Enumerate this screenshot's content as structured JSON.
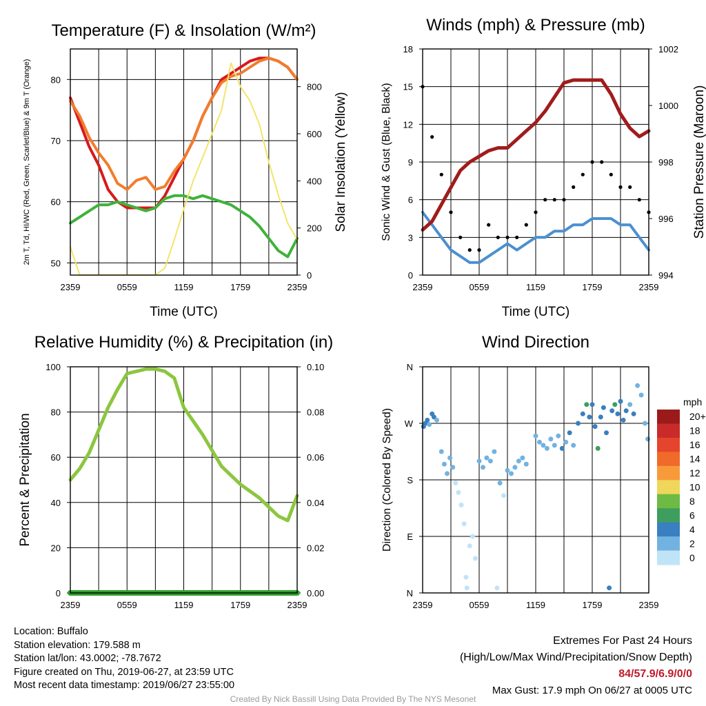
{
  "chart_data": [
    {
      "type": "line",
      "title": "Temperature (F) & Insolation (W/m²)",
      "xlabel": "Time (UTC)",
      "ylabel_left": "2m T, Td, HI/WC (Red, Green, Scarlet/Blue) & 9m T (Orange)",
      "ylabel_right": "Solar Insolation (Yellow)",
      "x_ticks": [
        "2359",
        "0559",
        "1159",
        "1759",
        "2359"
      ],
      "ylim_left": [
        48,
        85
      ],
      "yticks_left": [
        50,
        60,
        70,
        80
      ],
      "ylim_right": [
        0,
        960
      ],
      "yticks_right": [
        0,
        200,
        400,
        600,
        800
      ],
      "x_hours": [
        0,
        1,
        2,
        3,
        4,
        5,
        6,
        7,
        8,
        9,
        10,
        11,
        12,
        13,
        14,
        15,
        16,
        17,
        18,
        19,
        20,
        21,
        22,
        23,
        24
      ],
      "series": [
        {
          "name": "2m T",
          "color": "#d7191c",
          "axis": "left",
          "values": [
            77,
            73,
            69,
            66,
            62,
            60,
            59,
            59,
            59,
            59,
            61,
            64,
            67,
            70,
            74,
            77,
            80,
            81,
            82,
            83,
            83.5,
            83.5,
            83,
            82,
            80
          ]
        },
        {
          "name": "9m T",
          "color": "#f27c2b",
          "axis": "left",
          "values": [
            76.5,
            74,
            70.5,
            68,
            66,
            63,
            62,
            63.5,
            64,
            62,
            62.5,
            65,
            67,
            70,
            74,
            77,
            79.5,
            80.5,
            81,
            82,
            83,
            83.5,
            83,
            82,
            80
          ]
        },
        {
          "name": "Td",
          "color": "#3fb23a",
          "axis": "left",
          "values": [
            56.5,
            57.5,
            58.5,
            59.5,
            59.5,
            60,
            59.5,
            59,
            58.5,
            59,
            60.5,
            61,
            61,
            60.5,
            61,
            60.5,
            60,
            59.5,
            58.5,
            57.5,
            56,
            54,
            52,
            51,
            54
          ]
        },
        {
          "name": "Solar Insolation",
          "color": "#f3e46a",
          "axis": "right",
          "values": [
            120,
            0,
            0,
            0,
            0,
            0,
            0,
            0,
            0,
            0,
            30,
            150,
            280,
            400,
            500,
            600,
            700,
            900,
            800,
            740,
            640,
            480,
            340,
            220,
            150
          ]
        }
      ]
    },
    {
      "type": "line",
      "title": "Winds (mph) & Pressure (mb)",
      "xlabel": "Time (UTC)",
      "ylabel_left": "Sonic Wind & Gust (Blue, Black)",
      "ylabel_right": "Station Pressure (Maroon)",
      "x_ticks": [
        "2359",
        "0559",
        "1159",
        "1759",
        "2359"
      ],
      "ylim_left": [
        0,
        18
      ],
      "yticks_left": [
        0,
        3,
        6,
        9,
        12,
        15,
        18
      ],
      "ylim_right": [
        994,
        1002
      ],
      "yticks_right": [
        994,
        996,
        998,
        1000,
        1002
      ],
      "x_hours": [
        0,
        1,
        2,
        3,
        4,
        5,
        6,
        7,
        8,
        9,
        10,
        11,
        12,
        13,
        14,
        15,
        16,
        17,
        18,
        19,
        20,
        21,
        22,
        23,
        24
      ],
      "series": [
        {
          "name": "Sonic Wind",
          "color": "#4a90d0",
          "axis": "left",
          "values": [
            5,
            4,
            3,
            2,
            1.5,
            1,
            1,
            1.5,
            2,
            2.5,
            2,
            2.5,
            3,
            3,
            3.5,
            3.5,
            4,
            4,
            4.5,
            4.5,
            4.5,
            4,
            4,
            3,
            2
          ]
        },
        {
          "name": "Gust",
          "color": "#000000",
          "axis": "left",
          "values": [
            15,
            11,
            8,
            5,
            3,
            2,
            2,
            4,
            3,
            3,
            3,
            4,
            5,
            6,
            6,
            6,
            7,
            8,
            9,
            9,
            8,
            7,
            7,
            6,
            5
          ]
        },
        {
          "name": "Station Pressure",
          "color": "#a01c1c",
          "axis": "right",
          "values": [
            995.6,
            995.9,
            996.5,
            997.1,
            997.7,
            998.0,
            998.2,
            998.4,
            998.5,
            998.5,
            998.8,
            999.1,
            999.4,
            999.8,
            1000.3,
            1000.8,
            1000.9,
            1000.9,
            1000.9,
            1000.9,
            1000.4,
            999.7,
            999.2,
            998.9,
            999.1
          ]
        }
      ]
    },
    {
      "type": "line",
      "title": "Relative Humidity (%) & Precipitation (in)",
      "xlabel": "",
      "ylabel_left": "Percent & Precipitation",
      "x_ticks": [
        "2359",
        "0559",
        "1159",
        "1759",
        "2359"
      ],
      "ylim_left": [
        0,
        100
      ],
      "yticks_left": [
        0,
        20,
        40,
        60,
        80,
        100
      ],
      "ylim_right": [
        0,
        0.1
      ],
      "yticks_right": [
        "0.00",
        "0.02",
        "0.04",
        "0.06",
        "0.08",
        "0.10"
      ],
      "x_hours": [
        0,
        1,
        2,
        3,
        4,
        5,
        6,
        7,
        8,
        9,
        10,
        11,
        12,
        13,
        14,
        15,
        16,
        17,
        18,
        19,
        20,
        21,
        22,
        23,
        24
      ],
      "series": [
        {
          "name": "Relative Humidity",
          "color": "#8cc63f",
          "axis": "left",
          "values": [
            50,
            55,
            62,
            72,
            82,
            90,
            97,
            98,
            99,
            99,
            98,
            95,
            82,
            76,
            70,
            63,
            56,
            52,
            48,
            45,
            42,
            38,
            34,
            32,
            43
          ]
        },
        {
          "name": "Precipitation",
          "color": "#2f9e2f",
          "axis": "right",
          "values": [
            0,
            0,
            0,
            0,
            0,
            0,
            0,
            0,
            0,
            0,
            0,
            0,
            0,
            0,
            0,
            0,
            0,
            0,
            0,
            0,
            0,
            0,
            0,
            0,
            0
          ]
        }
      ]
    },
    {
      "type": "scatter",
      "title": "Wind Direction",
      "xlabel": "",
      "ylabel_left": "Direction (Colored By Speed)",
      "x_ticks": [
        "2359",
        "0559",
        "1159",
        "1759",
        "2359"
      ],
      "y_ticks": [
        "N",
        "E",
        "S",
        "W",
        "N"
      ],
      "ylim": [
        0,
        360
      ],
      "colorbar": {
        "title": "mph",
        "labels": [
          "20+",
          "18",
          "16",
          "14",
          "12",
          "10",
          "8",
          "6",
          "4",
          "2",
          "0"
        ],
        "colors": [
          "#9b1b1b",
          "#c92a2a",
          "#e4452c",
          "#f06a2a",
          "#f79b3a",
          "#f0d65a",
          "#6dbb45",
          "#3d9e5e",
          "#3a7fbf",
          "#72b2e0",
          "#bfe4f7"
        ]
      },
      "points": [
        {
          "x": 0.1,
          "dir": 265,
          "speed": 5
        },
        {
          "x": 0.3,
          "dir": 270,
          "speed": 4
        },
        {
          "x": 0.5,
          "dir": 275,
          "speed": 5
        },
        {
          "x": 0.7,
          "dir": 268,
          "speed": 3
        },
        {
          "x": 1.0,
          "dir": 285,
          "speed": 4
        },
        {
          "x": 1.2,
          "dir": 280,
          "speed": 5
        },
        {
          "x": 1.5,
          "dir": 275,
          "speed": 3
        },
        {
          "x": 2.0,
          "dir": 225,
          "speed": 2
        },
        {
          "x": 2.3,
          "dir": 205,
          "speed": 3
        },
        {
          "x": 2.6,
          "dir": 190,
          "speed": 2
        },
        {
          "x": 2.9,
          "dir": 215,
          "speed": 2
        },
        {
          "x": 3.2,
          "dir": 200,
          "speed": 2
        },
        {
          "x": 3.5,
          "dir": 175,
          "speed": 1
        },
        {
          "x": 3.8,
          "dir": 160,
          "speed": 1
        },
        {
          "x": 4.1,
          "dir": 140,
          "speed": 1
        },
        {
          "x": 4.4,
          "dir": 110,
          "speed": 1
        },
        {
          "x": 4.6,
          "dir": 25,
          "speed": 1
        },
        {
          "x": 4.7,
          "dir": 8,
          "speed": 0
        },
        {
          "x": 5.0,
          "dir": 75,
          "speed": 1
        },
        {
          "x": 5.3,
          "dir": 90,
          "speed": 1
        },
        {
          "x": 5.6,
          "dir": 55,
          "speed": 1
        },
        {
          "x": 6.0,
          "dir": 210,
          "speed": 2
        },
        {
          "x": 6.4,
          "dir": 200,
          "speed": 3
        },
        {
          "x": 6.8,
          "dir": 215,
          "speed": 2
        },
        {
          "x": 7.2,
          "dir": 210,
          "speed": 2
        },
        {
          "x": 7.6,
          "dir": 225,
          "speed": 2
        },
        {
          "x": 7.9,
          "dir": 8,
          "speed": 0
        },
        {
          "x": 8.2,
          "dir": 175,
          "speed": 2
        },
        {
          "x": 8.6,
          "dir": 155,
          "speed": 1
        },
        {
          "x": 9.0,
          "dir": 195,
          "speed": 2
        },
        {
          "x": 9.4,
          "dir": 190,
          "speed": 2
        },
        {
          "x": 9.8,
          "dir": 200,
          "speed": 3
        },
        {
          "x": 10.2,
          "dir": 210,
          "speed": 2
        },
        {
          "x": 10.6,
          "dir": 215,
          "speed": 2
        },
        {
          "x": 11.0,
          "dir": 205,
          "speed": 3
        },
        {
          "x": 12.0,
          "dir": 250,
          "speed": 2
        },
        {
          "x": 12.4,
          "dir": 240,
          "speed": 3
        },
        {
          "x": 12.8,
          "dir": 235,
          "speed": 3
        },
        {
          "x": 13.2,
          "dir": 230,
          "speed": 3
        },
        {
          "x": 13.6,
          "dir": 245,
          "speed": 3
        },
        {
          "x": 14.0,
          "dir": 235,
          "speed": 3
        },
        {
          "x": 14.4,
          "dir": 250,
          "speed": 3
        },
        {
          "x": 14.8,
          "dir": 230,
          "speed": 4
        },
        {
          "x": 15.2,
          "dir": 240,
          "speed": 3
        },
        {
          "x": 15.6,
          "dir": 255,
          "speed": 4
        },
        {
          "x": 16.0,
          "dir": 235,
          "speed": 3
        },
        {
          "x": 16.5,
          "dir": 270,
          "speed": 4
        },
        {
          "x": 17.0,
          "dir": 285,
          "speed": 5
        },
        {
          "x": 17.4,
          "dir": 300,
          "speed": 6
        },
        {
          "x": 17.7,
          "dir": 280,
          "speed": 5
        },
        {
          "x": 18.0,
          "dir": 300,
          "speed": 4
        },
        {
          "x": 18.3,
          "dir": 265,
          "speed": 4
        },
        {
          "x": 18.6,
          "dir": 230,
          "speed": 6
        },
        {
          "x": 18.9,
          "dir": 280,
          "speed": 5
        },
        {
          "x": 19.2,
          "dir": 295,
          "speed": 5
        },
        {
          "x": 19.5,
          "dir": 255,
          "speed": 4
        },
        {
          "x": 19.8,
          "dir": 8,
          "speed": 4
        },
        {
          "x": 20.1,
          "dir": 290,
          "speed": 5
        },
        {
          "x": 20.4,
          "dir": 300,
          "speed": 6
        },
        {
          "x": 20.7,
          "dir": 285,
          "speed": 4
        },
        {
          "x": 21.0,
          "dir": 305,
          "speed": 4
        },
        {
          "x": 21.3,
          "dir": 275,
          "speed": 5
        },
        {
          "x": 21.6,
          "dir": 290,
          "speed": 4
        },
        {
          "x": 22.0,
          "dir": 300,
          "speed": 3
        },
        {
          "x": 22.4,
          "dir": 285,
          "speed": 4
        },
        {
          "x": 22.8,
          "dir": 330,
          "speed": 3
        },
        {
          "x": 23.2,
          "dir": 315,
          "speed": 3
        },
        {
          "x": 23.6,
          "dir": 270,
          "speed": 2
        },
        {
          "x": 23.9,
          "dir": 245,
          "speed": 2
        }
      ]
    }
  ],
  "info": {
    "location": "Location: Buffalo",
    "elevation": "Station elevation: 179.588 m",
    "latlon": "Station lat/lon: 43.0002; -78.7672",
    "created": "Figure created on Thu, 2019-06-27, at 23:59 UTC",
    "recent": "Most recent data timestamp: 2019/06/27 23:55:00"
  },
  "extremes": {
    "title": "Extremes For Past 24 Hours",
    "subtitle": "(High/Low/Max Wind/Precipitation/Snow Depth)",
    "values": "84/57.9/6.9/0/0",
    "max_gust": "Max Gust: 17.9 mph On 06/27 at 0005 UTC"
  },
  "credit": "Created By Nick Bassill Using Data Provided By The NYS Mesonet"
}
